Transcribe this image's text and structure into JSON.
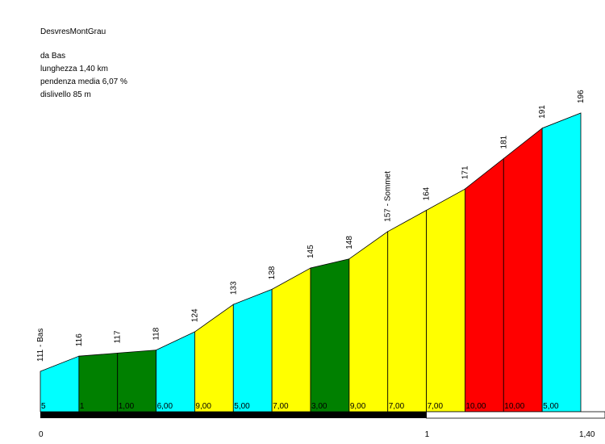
{
  "header": {
    "title": "DesvresMontGrau",
    "start_label": "da Bas",
    "length": "lunghezza 1,40 km",
    "avg_gradient": "pendenza media 6,07 %",
    "elevation_gain": "dislivello 85 m"
  },
  "chart_data": {
    "type": "area",
    "title": "DesvresMontGrau",
    "xlabel": "",
    "ylabel": "",
    "x_unit": "km",
    "xlim": [
      0,
      1.4
    ],
    "x_tick_labels": [
      "0",
      "1",
      "1,40"
    ],
    "x": [
      0,
      0.1,
      0.2,
      0.3,
      0.4,
      0.5,
      0.6,
      0.7,
      0.8,
      0.9,
      1.0,
      1.1,
      1.2,
      1.3,
      1.4
    ],
    "elevation": [
      111,
      116,
      117,
      118,
      124,
      133,
      138,
      145,
      148,
      157,
      164,
      171,
      181,
      191,
      196
    ],
    "elevation_labels": [
      "111 - Bas",
      "116",
      "117",
      "118",
      "124",
      "133",
      "138",
      "145",
      "148",
      "157 - Sommet",
      "164",
      "171",
      "181",
      "191",
      "196"
    ],
    "segment_gradients": [
      "5",
      "1",
      "1,00",
      "6,00",
      "9,00",
      "5,00",
      "7,00",
      "3,00",
      "9,00",
      "7,00",
      "7,00",
      "10,00",
      "10,00",
      "5,00"
    ],
    "segment_colors": [
      "#00ffff",
      "#008000",
      "#008000",
      "#00ffff",
      "#ffff00",
      "#00ffff",
      "#ffff00",
      "#008000",
      "#ffff00",
      "#ffff00",
      "#ffff00",
      "#ff0000",
      "#ff0000",
      "#00ffff"
    ],
    "grid": false,
    "legend": "none"
  }
}
